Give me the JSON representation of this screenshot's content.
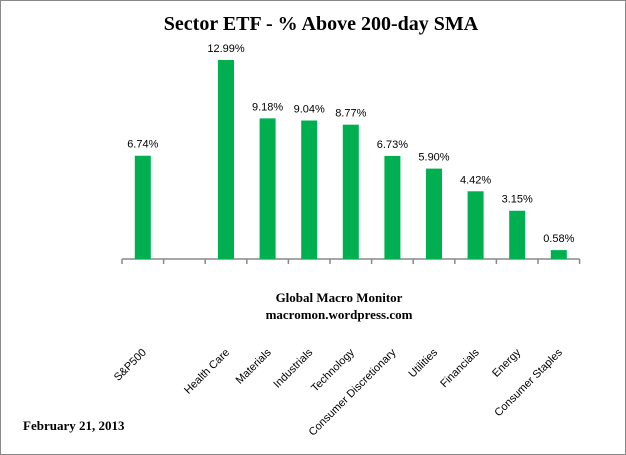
{
  "chart_data": {
    "type": "bar",
    "title": "Sector ETF - % Above 200-day SMA",
    "categories": [
      "S&P500",
      "",
      "Health Care",
      "Materials",
      "Industrials",
      "Technology",
      "Consumer Discretionary",
      "Utilities",
      "Financials",
      "Energy",
      "Consumer Staples"
    ],
    "values": [
      6.74,
      null,
      12.99,
      9.18,
      9.04,
      8.77,
      6.73,
      5.9,
      4.42,
      3.15,
      0.58
    ],
    "data_labels": [
      "6.74%",
      "",
      "12.99%",
      "9.18%",
      "9.04%",
      "8.77%",
      "6.73%",
      "5.90%",
      "4.42%",
      "3.15%",
      "0.58%"
    ],
    "ylim": [
      0,
      13
    ],
    "grid": false,
    "bar_color": "#00B050",
    "annotations": [
      "Global Macro Monitor",
      "macromon.wordpress.com",
      "February 21, 2013"
    ]
  }
}
